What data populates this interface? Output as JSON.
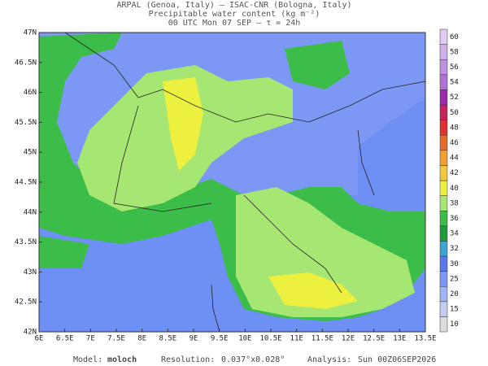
{
  "header": {
    "line1": "ARPAL (Genoa, Italy)  –  ISAC-CNR (Bologna, Italy)",
    "line2": "Precipitable water content (kg m⁻²)",
    "line3": "00 UTC Mon 07 SEP  –  τ = 24h"
  },
  "map": {
    "xlim": [
      6,
      13.5
    ],
    "ylim": [
      42,
      47
    ],
    "xticks": [
      {
        "value": 6,
        "label": "6E"
      },
      {
        "value": 6.5,
        "label": "6.5E"
      },
      {
        "value": 7,
        "label": "7E"
      },
      {
        "value": 7.5,
        "label": "7.5E"
      },
      {
        "value": 8,
        "label": "8E"
      },
      {
        "value": 8.5,
        "label": "8.5E"
      },
      {
        "value": 9,
        "label": "9E"
      },
      {
        "value": 9.5,
        "label": "9.5E"
      },
      {
        "value": 10,
        "label": "10E"
      },
      {
        "value": 10.5,
        "label": "10.5E"
      },
      {
        "value": 11,
        "label": "11E"
      },
      {
        "value": 11.5,
        "label": "11.5E"
      },
      {
        "value": 12,
        "label": "12E"
      },
      {
        "value": 12.5,
        "label": "12.5E"
      },
      {
        "value": 13,
        "label": "13E"
      },
      {
        "value": 13.5,
        "label": "13.5E"
      }
    ],
    "yticks": [
      {
        "value": 42,
        "label": "42N"
      },
      {
        "value": 42.5,
        "label": "42.5N"
      },
      {
        "value": 43,
        "label": "43N"
      },
      {
        "value": 43.5,
        "label": "43.5N"
      },
      {
        "value": 44,
        "label": "44N"
      },
      {
        "value": 44.5,
        "label": "44.5N"
      },
      {
        "value": 45,
        "label": "45N"
      },
      {
        "value": 45.5,
        "label": "45.5N"
      },
      {
        "value": 46,
        "label": "46N"
      },
      {
        "value": 46.5,
        "label": "46.5N"
      },
      {
        "value": 47,
        "label": "47N"
      }
    ]
  },
  "colorbar": {
    "levels": [
      10,
      15,
      20,
      25,
      30,
      32,
      34,
      36,
      38,
      40,
      42,
      44,
      46,
      48,
      50,
      52,
      54,
      56,
      58,
      60
    ],
    "colors": [
      "#dcdcdc",
      "#c4cdf0",
      "#9fb4f6",
      "#7d98f4",
      "#5b78e8",
      "#3aa5d2",
      "#1f9a3c",
      "#3cbc48",
      "#a6e672",
      "#eef040",
      "#f2c838",
      "#f0a030",
      "#ea6a28",
      "#e03030",
      "#c8205c",
      "#9a2aa8",
      "#b070d8",
      "#c090e4",
      "#d0b0ec",
      "#e0ccf2"
    ]
  },
  "footer": {
    "model_label": "Model:",
    "model": "moloch",
    "resolution_label": "Resolution:",
    "resolution": "0.037°x0.028°",
    "analysis_label": "Analysis:",
    "analysis": "Sun 00Z06SEP2026"
  }
}
